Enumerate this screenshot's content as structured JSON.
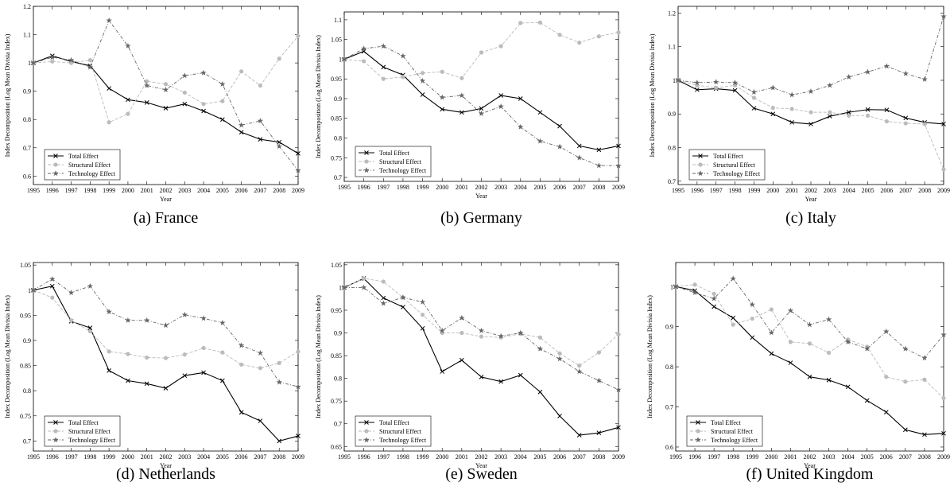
{
  "chart_data": [
    {
      "type": "line",
      "caption": "(a) France",
      "x_label": "Year",
      "y_label": "Index Decomposition (Log Mean Divisia Index)",
      "x": [
        1995,
        1996,
        1997,
        1998,
        1999,
        2000,
        2001,
        2002,
        2003,
        2004,
        2005,
        2006,
        2007,
        2008,
        2009
      ],
      "xlim": [
        1995,
        2009
      ],
      "xticks": [
        1995,
        1996,
        1997,
        1998,
        1999,
        2000,
        2001,
        2002,
        2003,
        2004,
        2005,
        2006,
        2007,
        2008,
        2009
      ],
      "ylim": [
        0.57,
        1.2
      ],
      "yticks": [
        0.6,
        0.7,
        0.8,
        0.9,
        1,
        1.1,
        1.2
      ],
      "legend": "lower left",
      "series": [
        {
          "name": "Total Effect",
          "color": "#000000",
          "linestyle": "solid",
          "marker": "x",
          "values": [
            1.0,
            1.025,
            1.005,
            0.99,
            0.91,
            0.87,
            0.86,
            0.84,
            0.855,
            0.83,
            0.8,
            0.755,
            0.73,
            0.72,
            0.68
          ]
        },
        {
          "name": "Structural Effect",
          "color": "#bbbbbb",
          "linestyle": "dashed",
          "marker": "circle",
          "values": [
            1.0,
            1.005,
            1.0,
            1.01,
            0.79,
            0.82,
            0.935,
            0.925,
            0.895,
            0.855,
            0.865,
            0.97,
            0.92,
            1.015,
            1.095
          ]
        },
        {
          "name": "Technology Effect",
          "color": "#666666",
          "linestyle": "dashdot",
          "marker": "star",
          "values": [
            1.0,
            1.02,
            1.01,
            0.985,
            1.15,
            1.06,
            0.92,
            0.905,
            0.955,
            0.965,
            0.925,
            0.78,
            0.795,
            0.705,
            0.62
          ]
        }
      ]
    },
    {
      "type": "line",
      "caption": "(b) Germany",
      "x_label": "Year",
      "y_label": "Index Decomposition (Log Mean Divisia Index)",
      "x": [
        1995,
        1996,
        1997,
        1998,
        1999,
        2000,
        2001,
        2002,
        2003,
        2004,
        2005,
        2006,
        2007,
        2008,
        2009
      ],
      "xlim": [
        1995,
        2009
      ],
      "xticks": [
        1995,
        1996,
        1997,
        1998,
        1999,
        2000,
        2001,
        2002,
        2003,
        2004,
        2005,
        2006,
        2007,
        2008,
        2009
      ],
      "ylim": [
        0.69,
        1.12
      ],
      "yticks": [
        0.7,
        0.75,
        0.8,
        0.85,
        0.9,
        0.95,
        1,
        1.05,
        1.1
      ],
      "legend": "lower left",
      "series": [
        {
          "name": "Total Effect",
          "color": "#000000",
          "linestyle": "solid",
          "marker": "x",
          "values": [
            1.0,
            1.02,
            0.98,
            0.96,
            0.91,
            0.873,
            0.865,
            0.875,
            0.908,
            0.9,
            0.865,
            0.83,
            0.78,
            0.77,
            0.78
          ]
        },
        {
          "name": "Structural Effect",
          "color": "#bbbbbb",
          "linestyle": "dashed",
          "marker": "circle",
          "values": [
            1.0,
            0.995,
            0.95,
            0.955,
            0.965,
            0.968,
            0.952,
            1.017,
            1.033,
            1.092,
            1.093,
            1.062,
            1.042,
            1.058,
            1.068
          ]
        },
        {
          "name": "Technology Effect",
          "color": "#666666",
          "linestyle": "dashdot",
          "marker": "star",
          "values": [
            1.0,
            1.027,
            1.033,
            1.008,
            0.945,
            0.903,
            0.908,
            0.862,
            0.88,
            0.828,
            0.792,
            0.778,
            0.75,
            0.73,
            0.73
          ]
        }
      ]
    },
    {
      "type": "line",
      "caption": "(c) Italy",
      "x_label": "Year",
      "y_label": "Index Decomposition (Log Mean Divisia Index)",
      "x": [
        1995,
        1996,
        1997,
        1998,
        1999,
        2000,
        2001,
        2002,
        2003,
        2004,
        2005,
        2006,
        2007,
        2008,
        2009
      ],
      "xlim": [
        1995,
        2009
      ],
      "xticks": [
        1995,
        1996,
        1997,
        1998,
        1999,
        2000,
        2001,
        2002,
        2003,
        2004,
        2005,
        2006,
        2007,
        2008,
        2009
      ],
      "ylim": [
        0.69,
        1.22
      ],
      "yticks": [
        0.7,
        0.8,
        0.9,
        1,
        1.1,
        1.2
      ],
      "legend": "lower left",
      "series": [
        {
          "name": "Total Effect",
          "color": "#000000",
          "linestyle": "solid",
          "marker": "x",
          "values": [
            1.0,
            0.972,
            0.975,
            0.97,
            0.917,
            0.9,
            0.875,
            0.87,
            0.893,
            0.905,
            0.913,
            0.912,
            0.888,
            0.875,
            0.87
          ]
        },
        {
          "name": "Structural Effect",
          "color": "#bbbbbb",
          "linestyle": "dashed",
          "marker": "circle",
          "values": [
            1.0,
            0.985,
            0.978,
            0.985,
            0.948,
            0.918,
            0.915,
            0.905,
            0.905,
            0.895,
            0.895,
            0.878,
            0.872,
            0.87,
            0.735
          ]
        },
        {
          "name": "Technology Effect",
          "color": "#666666",
          "linestyle": "dashdot",
          "marker": "star",
          "values": [
            1.0,
            0.993,
            0.995,
            0.993,
            0.965,
            0.978,
            0.957,
            0.967,
            0.985,
            1.01,
            1.025,
            1.042,
            1.02,
            1.003,
            1.19
          ]
        }
      ]
    },
    {
      "type": "line",
      "caption": "(d) Netherlands",
      "x_label": "Year",
      "y_label": "Index Decomposition (Log Mean Divisia Index)",
      "x": [
        1995,
        1996,
        1997,
        1998,
        1999,
        2000,
        2001,
        2002,
        2003,
        2004,
        2005,
        2006,
        2007,
        2008,
        2009
      ],
      "xlim": [
        1995,
        2009
      ],
      "xticks": [
        1995,
        1996,
        1997,
        1998,
        1999,
        2000,
        2001,
        2002,
        2003,
        2004,
        2005,
        2006,
        2007,
        2008,
        2009
      ],
      "ylim": [
        0.68,
        1.055
      ],
      "yticks": [
        0.7,
        0.75,
        0.8,
        0.85,
        0.9,
        0.95,
        1,
        1.05
      ],
      "legend": "lower left",
      "series": [
        {
          "name": "Total Effect",
          "color": "#000000",
          "linestyle": "solid",
          "marker": "x",
          "values": [
            1.0,
            1.008,
            0.938,
            0.925,
            0.84,
            0.82,
            0.814,
            0.805,
            0.83,
            0.836,
            0.82,
            0.757,
            0.74,
            0.7,
            0.71
          ]
        },
        {
          "name": "Structural Effect",
          "color": "#bbbbbb",
          "linestyle": "dashed",
          "marker": "circle",
          "values": [
            1.0,
            0.985,
            0.94,
            0.918,
            0.878,
            0.873,
            0.866,
            0.865,
            0.872,
            0.885,
            0.876,
            0.852,
            0.845,
            0.855,
            0.878
          ]
        },
        {
          "name": "Technology Effect",
          "color": "#666666",
          "linestyle": "dashdot",
          "marker": "star",
          "values": [
            1.0,
            1.022,
            0.995,
            1.008,
            0.957,
            0.94,
            0.94,
            0.93,
            0.951,
            0.944,
            0.935,
            0.89,
            0.875,
            0.817,
            0.808
          ]
        }
      ]
    },
    {
      "type": "line",
      "caption": "(e) Sweden",
      "x_label": "Year",
      "y_label": "Index Decomposition (Log Mean Divisia Index)",
      "x": [
        1995,
        1996,
        1997,
        1998,
        1999,
        2000,
        2001,
        2002,
        2003,
        2004,
        2005,
        2006,
        2007,
        2008,
        2009
      ],
      "xlim": [
        1995,
        2009
      ],
      "xticks": [
        1995,
        1996,
        1997,
        1998,
        1999,
        2000,
        2001,
        2002,
        2003,
        2004,
        2005,
        2006,
        2007,
        2008,
        2009
      ],
      "ylim": [
        0.64,
        1.055
      ],
      "yticks": [
        0.65,
        0.7,
        0.75,
        0.8,
        0.85,
        0.9,
        0.95,
        1,
        1.05
      ],
      "legend": "lower left",
      "series": [
        {
          "name": "Total Effect",
          "color": "#000000",
          "linestyle": "solid",
          "marker": "x",
          "values": [
            1.0,
            1.02,
            0.977,
            0.957,
            0.91,
            0.815,
            0.84,
            0.803,
            0.793,
            0.807,
            0.77,
            0.717,
            0.675,
            0.68,
            0.692
          ]
        },
        {
          "name": "Structural Effect",
          "color": "#bbbbbb",
          "linestyle": "dashed",
          "marker": "circle",
          "values": [
            1.0,
            1.02,
            1.013,
            0.978,
            0.94,
            0.9,
            0.9,
            0.892,
            0.89,
            0.898,
            0.89,
            0.855,
            0.828,
            0.857,
            0.897
          ]
        },
        {
          "name": "Technology Effect",
          "color": "#666666",
          "linestyle": "dashdot",
          "marker": "star",
          "values": [
            1.0,
            1.0,
            0.965,
            0.978,
            0.968,
            0.905,
            0.933,
            0.905,
            0.893,
            0.9,
            0.865,
            0.843,
            0.815,
            0.795,
            0.775
          ]
        }
      ]
    },
    {
      "type": "line",
      "caption": "(f) United Kingdom",
      "x_label": "Year",
      "y_label": "Index Decomposition (Log Mean Divisia Index)",
      "x": [
        1995,
        1996,
        1997,
        1998,
        1999,
        2000,
        2001,
        2002,
        2003,
        2004,
        2005,
        2006,
        2007,
        2008,
        2009
      ],
      "xlim": [
        1995,
        2009
      ],
      "xticks": [
        1995,
        1996,
        1997,
        1998,
        1999,
        2000,
        2001,
        2002,
        2003,
        2004,
        2005,
        2006,
        2007,
        2008,
        2009
      ],
      "ylim": [
        0.59,
        1.06
      ],
      "yticks": [
        0.6,
        0.7,
        0.8,
        0.9,
        1
      ],
      "legend": "lower left",
      "series": [
        {
          "name": "Total Effect",
          "color": "#000000",
          "linestyle": "solid",
          "marker": "x",
          "values": [
            1.0,
            0.99,
            0.95,
            0.922,
            0.873,
            0.833,
            0.81,
            0.775,
            0.767,
            0.75,
            0.716,
            0.687,
            0.643,
            0.631,
            0.634
          ]
        },
        {
          "name": "Structural Effect",
          "color": "#bbbbbb",
          "linestyle": "dashed",
          "marker": "circle",
          "values": [
            1.0,
            1.005,
            0.982,
            0.905,
            0.92,
            0.943,
            0.862,
            0.858,
            0.835,
            0.868,
            0.85,
            0.775,
            0.763,
            0.768,
            0.722
          ]
        },
        {
          "name": "Technology Effect",
          "color": "#666666",
          "linestyle": "dashdot",
          "marker": "star",
          "values": [
            1.0,
            0.985,
            0.97,
            1.02,
            0.955,
            0.885,
            0.94,
            0.905,
            0.918,
            0.862,
            0.845,
            0.888,
            0.845,
            0.822,
            0.88
          ]
        }
      ]
    }
  ]
}
